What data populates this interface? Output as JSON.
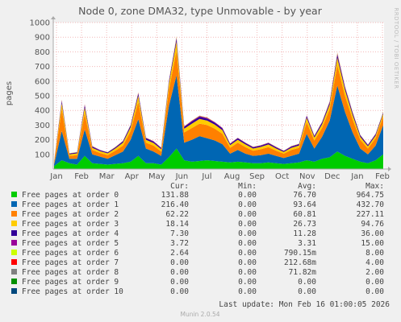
{
  "title": "Node 0, zone DMA32, type Unmovable - by year",
  "ylabel": "pages",
  "side_label": "RRDTOOL / TOBI OETIKER",
  "footer": "Munin 2.0.54",
  "last_update": "Last update: Mon Feb 16 01:00:05 2026",
  "columns": [
    "Cur:",
    "Min:",
    "Avg:",
    "Max:"
  ],
  "legend": [
    {
      "label": "Free pages at order  0",
      "color": "#00cc00",
      "cur": "131.88",
      "min": "0.00",
      "avg": "76.70",
      "max": "964.75"
    },
    {
      "label": "Free pages at order  1",
      "color": "#0066b3",
      "cur": "216.40",
      "min": "0.00",
      "avg": "93.64",
      "max": "432.70"
    },
    {
      "label": "Free pages at order  2",
      "color": "#ff8000",
      "cur": "62.22",
      "min": "0.00",
      "avg": "60.81",
      "max": "227.11"
    },
    {
      "label": "Free pages at order  3",
      "color": "#ffcc00",
      "cur": "18.14",
      "min": "0.00",
      "avg": "26.73",
      "max": "94.76"
    },
    {
      "label": "Free pages at order  4",
      "color": "#330099",
      "cur": "7.30",
      "min": "0.00",
      "avg": "11.28",
      "max": "36.00"
    },
    {
      "label": "Free pages at order  5",
      "color": "#990099",
      "cur": "3.72",
      "min": "0.00",
      "avg": "3.31",
      "max": "15.00"
    },
    {
      "label": "Free pages at order  6",
      "color": "#ccff00",
      "cur": "2.64",
      "min": "0.00",
      "avg": "790.15m",
      "max": "8.00"
    },
    {
      "label": "Free pages at order  7",
      "color": "#ff0000",
      "cur": "0.00",
      "min": "0.00",
      "avg": "212.68m",
      "max": "4.00"
    },
    {
      "label": "Free pages at order  8",
      "color": "#808080",
      "cur": "0.00",
      "min": "0.00",
      "avg": "71.82m",
      "max": "2.00"
    },
    {
      "label": "Free pages at order  9",
      "color": "#008f00",
      "cur": "0.00",
      "min": "0.00",
      "avg": "0.00",
      "max": "0.00"
    },
    {
      "label": "Free pages at order 10",
      "color": "#00487d",
      "cur": "0.00",
      "min": "0.00",
      "avg": "0.00",
      "max": "0.00"
    }
  ],
  "chart_data": {
    "type": "area",
    "title": "Node 0, zone DMA32, type Unmovable - by year",
    "ylabel": "pages",
    "ylim": [
      0,
      1000
    ],
    "yticks": [
      100,
      200,
      300,
      400,
      500,
      600,
      700,
      800,
      900,
      1000
    ],
    "grid": true,
    "xticks": [
      "Jan",
      "Feb",
      "Mar",
      "Apr",
      "May",
      "Jun",
      "Jul",
      "Aug",
      "Sep",
      "Oct",
      "Nov",
      "Dec",
      "Jan",
      "Feb"
    ],
    "x": [
      "Jan",
      "Jan",
      "Jan",
      "Jan",
      "Feb",
      "Feb",
      "Feb",
      "Mar",
      "Mar",
      "Mar",
      "Apr",
      "Apr",
      "Apr",
      "May",
      "May",
      "May",
      "May",
      "Jun",
      "Jun",
      "Jun",
      "Jul",
      "Jul",
      "Jul",
      "Aug",
      "Aug",
      "Aug",
      "Sep",
      "Sep",
      "Sep",
      "Oct",
      "Oct",
      "Oct",
      "Nov",
      "Nov",
      "Nov",
      "Dec",
      "Dec",
      "Dec",
      "Dec",
      "Jan",
      "Jan",
      "Jan",
      "Feb",
      "Feb"
    ],
    "series": [
      {
        "name": "Free pages at order  0",
        "values": [
          20,
          60,
          40,
          30,
          90,
          40,
          35,
          30,
          35,
          40,
          50,
          90,
          40,
          40,
          30,
          80,
          140,
          60,
          50,
          55,
          60,
          55,
          50,
          45,
          50,
          45,
          40,
          40,
          45,
          40,
          35,
          40,
          45,
          60,
          50,
          70,
          80,
          120,
          90,
          70,
          50,
          40,
          60,
          100
        ]
      },
      {
        "name": "Free pages at order  1",
        "values": [
          10,
          200,
          30,
          40,
          180,
          60,
          50,
          40,
          60,
          80,
          150,
          250,
          100,
          80,
          60,
          350,
          500,
          120,
          150,
          170,
          150,
          140,
          120,
          60,
          80,
          60,
          50,
          55,
          60,
          50,
          40,
          50,
          60,
          180,
          90,
          150,
          250,
          450,
          300,
          180,
          90,
          60,
          100,
          200
        ]
      },
      {
        "name": "Free pages at order  2",
        "values": [
          10,
          150,
          20,
          25,
          110,
          30,
          25,
          25,
          30,
          40,
          60,
          120,
          40,
          40,
          30,
          110,
          170,
          70,
          80,
          85,
          90,
          80,
          70,
          40,
          50,
          45,
          35,
          40,
          45,
          35,
          30,
          40,
          40,
          80,
          55,
          60,
          80,
          140,
          110,
          90,
          60,
          40,
          50,
          60
        ]
      },
      {
        "name": "Free pages at order  3",
        "values": [
          5,
          40,
          10,
          12,
          40,
          15,
          12,
          12,
          15,
          20,
          25,
          40,
          20,
          18,
          15,
          40,
          60,
          25,
          30,
          32,
          30,
          28,
          25,
          18,
          20,
          18,
          15,
          16,
          18,
          15,
          12,
          15,
          16,
          30,
          20,
          25,
          30,
          50,
          40,
          30,
          20,
          15,
          18,
          18
        ]
      },
      {
        "name": "Free pages at order  4",
        "values": [
          2,
          15,
          5,
          6,
          15,
          8,
          6,
          6,
          7,
          9,
          12,
          15,
          10,
          9,
          8,
          15,
          20,
          12,
          14,
          15,
          14,
          13,
          12,
          9,
          10,
          9,
          8,
          8,
          9,
          8,
          6,
          8,
          8,
          12,
          10,
          12,
          14,
          20,
          16,
          14,
          10,
          8,
          9,
          7
        ]
      },
      {
        "name": "Free pages at order  5",
        "values": [
          1,
          5,
          2,
          2,
          5,
          3,
          2,
          2,
          3,
          3,
          4,
          5,
          4,
          3,
          3,
          5,
          8,
          4,
          5,
          5,
          5,
          4,
          4,
          3,
          3,
          3,
          3,
          3,
          3,
          3,
          2,
          3,
          3,
          4,
          3,
          4,
          5,
          8,
          6,
          5,
          3,
          3,
          3,
          4
        ]
      },
      {
        "name": "Free pages at order  6",
        "values": [
          0,
          2,
          1,
          1,
          2,
          1,
          1,
          1,
          1,
          1,
          1,
          2,
          1,
          1,
          1,
          2,
          4,
          1,
          2,
          2,
          2,
          1,
          1,
          1,
          1,
          1,
          1,
          1,
          1,
          1,
          1,
          1,
          1,
          1,
          1,
          1,
          2,
          4,
          2,
          2,
          1,
          1,
          1,
          3
        ]
      },
      {
        "name": "Free pages at order  7",
        "values": [
          0,
          1,
          0,
          0,
          1,
          0,
          0,
          0,
          0,
          0,
          0,
          1,
          0,
          0,
          0,
          1,
          2,
          0,
          1,
          1,
          1,
          0,
          0,
          0,
          0,
          0,
          0,
          0,
          0,
          0,
          0,
          0,
          0,
          0,
          0,
          0,
          1,
          2,
          1,
          1,
          0,
          0,
          0,
          0
        ]
      },
      {
        "name": "Free pages at order  8",
        "values": [
          0,
          0,
          0,
          0,
          0,
          0,
          0,
          0,
          0,
          0,
          0,
          0,
          0,
          0,
          0,
          0,
          1,
          0,
          0,
          0,
          0,
          0,
          0,
          0,
          0,
          0,
          0,
          0,
          0,
          0,
          0,
          0,
          0,
          0,
          0,
          0,
          0,
          1,
          0,
          0,
          0,
          0,
          0,
          0
        ]
      },
      {
        "name": "Free pages at order  9",
        "values": [
          0,
          0,
          0,
          0,
          0,
          0,
          0,
          0,
          0,
          0,
          0,
          0,
          0,
          0,
          0,
          0,
          0,
          0,
          0,
          0,
          0,
          0,
          0,
          0,
          0,
          0,
          0,
          0,
          0,
          0,
          0,
          0,
          0,
          0,
          0,
          0,
          0,
          0,
          0,
          0,
          0,
          0,
          0,
          0
        ]
      },
      {
        "name": "Free pages at order 10",
        "values": [
          0,
          0,
          0,
          0,
          0,
          0,
          0,
          0,
          0,
          0,
          0,
          0,
          0,
          0,
          0,
          0,
          0,
          0,
          0,
          0,
          0,
          0,
          0,
          0,
          0,
          0,
          0,
          0,
          0,
          0,
          0,
          0,
          0,
          0,
          0,
          0,
          0,
          0,
          0,
          0,
          0,
          0,
          0,
          0
        ]
      }
    ]
  }
}
